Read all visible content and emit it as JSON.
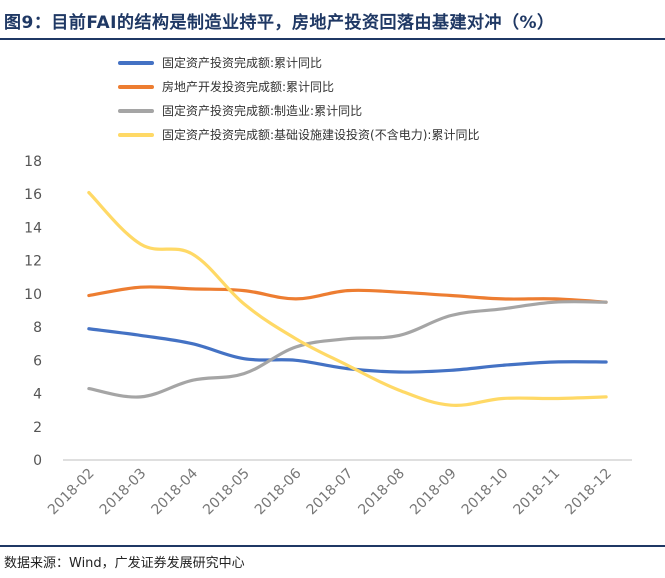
{
  "title": "图9：目前FAI的结构是制造业持平，房地产投资回落由基建对冲（%）",
  "source": "数据来源：Wind，广发证券发展研究中心",
  "chart_data": {
    "type": "line",
    "x": [
      "2018-02",
      "2018-03",
      "2018-04",
      "2018-05",
      "2018-06",
      "2018-07",
      "2018-08",
      "2018-09",
      "2018-10",
      "2018-11",
      "2018-12"
    ],
    "ylim": [
      0,
      18
    ],
    "yticks": [
      0,
      2,
      4,
      6,
      8,
      10,
      12,
      14,
      16,
      18
    ],
    "grid": false,
    "legend_position": "top-left",
    "series": [
      {
        "name": "固定资产投资完成额:累计同比",
        "color": "#4472c4",
        "values": [
          7.9,
          7.5,
          7.0,
          6.1,
          6.0,
          5.5,
          5.3,
          5.4,
          5.7,
          5.9,
          5.9
        ]
      },
      {
        "name": "房地产开发投资完成额:累计同比",
        "color": "#ed7d31",
        "values": [
          9.9,
          10.4,
          10.3,
          10.2,
          9.7,
          10.2,
          10.1,
          9.9,
          9.7,
          9.7,
          9.5
        ]
      },
      {
        "name": "固定资产投资完成额:制造业:累计同比",
        "color": "#a5a5a5",
        "values": [
          4.3,
          3.8,
          4.8,
          5.2,
          6.8,
          7.3,
          7.5,
          8.7,
          9.1,
          9.5,
          9.5
        ]
      },
      {
        "name": "固定资产投资完成额:基础设施建设投资(不含电力):累计同比",
        "color": "#ffd966",
        "values": [
          16.1,
          13.0,
          12.4,
          9.4,
          7.3,
          5.7,
          4.2,
          3.3,
          3.7,
          3.7,
          3.8
        ]
      }
    ]
  }
}
